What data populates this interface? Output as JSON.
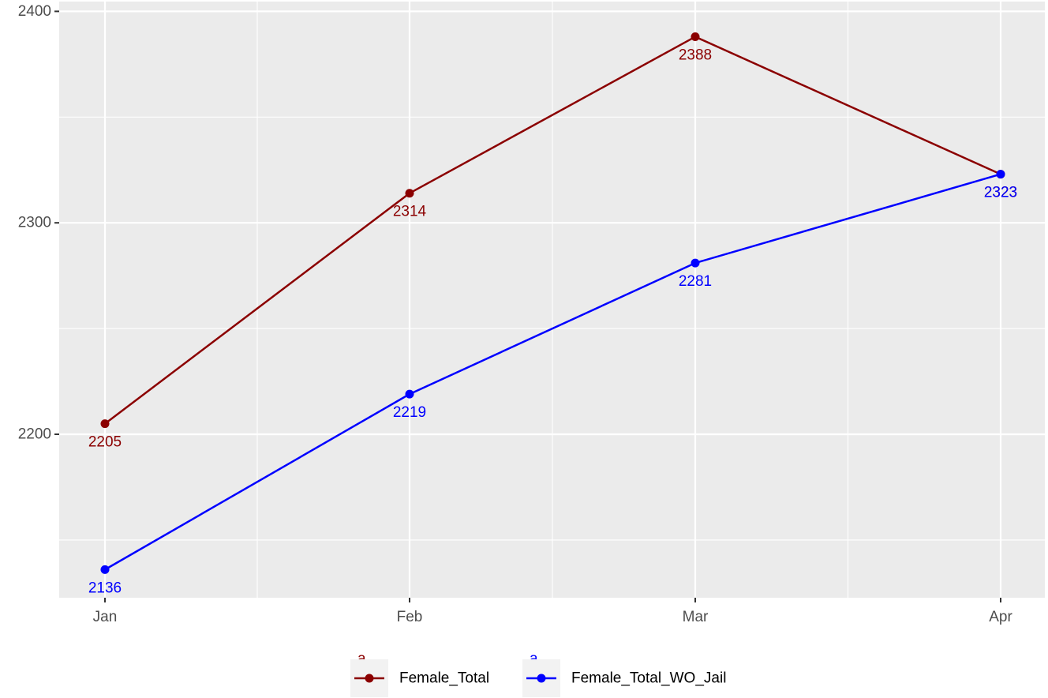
{
  "chart_data": {
    "type": "line",
    "x": [
      "Jan",
      "Feb",
      "Mar",
      "Apr"
    ],
    "ylim": [
      2130,
      2400
    ],
    "yticks": [
      2200,
      2300,
      2400
    ],
    "grid": true,
    "legend_position": "bottom",
    "series": [
      {
        "name": "Female_Total",
        "color": "#8B0000",
        "values": [
          2205,
          2314,
          2388,
          2323
        ]
      },
      {
        "name": "Female_Total_WO_Jail",
        "color": "#0000FF",
        "values": [
          2136,
          2219,
          2281,
          2323
        ]
      }
    ],
    "legend_keys": [
      {
        "title": "a",
        "label": "Female_Total",
        "color": "#8B0000"
      },
      {
        "title": "a",
        "label": "Female_Total_WO_Jail",
        "color": "#0000FF"
      }
    ],
    "colors": {
      "panel": "#EBEBEB",
      "grid": "#FFFFFF",
      "axis_text": "#4D4D4D"
    }
  }
}
